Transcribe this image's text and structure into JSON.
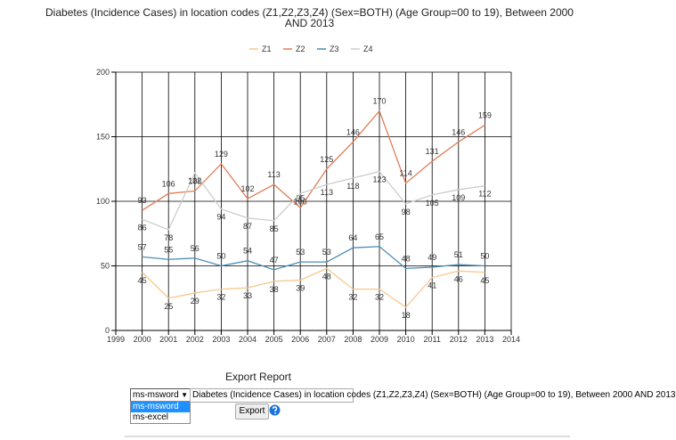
{
  "chart_data": {
    "type": "line",
    "title": "Diabetes (Incidence Cases) in location codes (Z1,Z2,Z3,Z4) (Sex=BOTH) (Age Group=00 to 19), Between 2000 AND 2013",
    "x": [
      2000,
      2001,
      2002,
      2003,
      2004,
      2005,
      2006,
      2007,
      2008,
      2009,
      2010,
      2011,
      2012,
      2013
    ],
    "series": [
      {
        "name": "Z1",
        "color": "#f6c88f",
        "values": [
          45,
          25,
          29,
          32,
          33,
          38,
          39,
          48,
          32,
          32,
          18,
          41,
          46,
          45
        ]
      },
      {
        "name": "Z2",
        "color": "#e07d56",
        "values": [
          93,
          106,
          108,
          129,
          102,
          113,
          95,
          125,
          146,
          170,
          114,
          131,
          146,
          159
        ]
      },
      {
        "name": "Z3",
        "color": "#4d8db3",
        "values": [
          57,
          55,
          56,
          50,
          54,
          47,
          53,
          53,
          64,
          65,
          48,
          49,
          51,
          50
        ]
      },
      {
        "name": "Z4",
        "color": "#cccccc",
        "values": [
          86,
          78,
          122,
          94,
          87,
          85,
          106,
          113,
          118,
          123,
          98,
          105,
          109,
          112
        ]
      }
    ],
    "xlim": [
      1999,
      2014
    ],
    "xticks": [
      1999,
      2000,
      2001,
      2002,
      2003,
      2004,
      2005,
      2006,
      2007,
      2008,
      2009,
      2010,
      2011,
      2012,
      2013,
      2014
    ],
    "ylim": [
      0,
      200
    ],
    "yticks": [
      0,
      50,
      100,
      150,
      200
    ],
    "grid": true,
    "legend": "top"
  },
  "export": {
    "title": "Export Report",
    "format_options": [
      "ms-msword",
      "ms-excel"
    ],
    "selected_format": "ms-msword",
    "report_name": "Diabetes (Incidence Cases) in location codes (Z1,Z2,Z3,Z4) (Sex=BOTH) (Age Group=00 to 19), Between 2000 AND 2013",
    "button": "Export"
  }
}
